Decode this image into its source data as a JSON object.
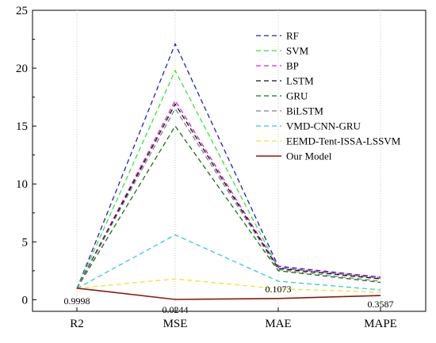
{
  "chart_data": {
    "type": "line",
    "categories": [
      "R2",
      "MSE",
      "MAE",
      "MAPE"
    ],
    "ylim": [
      -1,
      25
    ],
    "yticks": [
      0,
      5,
      10,
      15,
      20,
      25
    ],
    "grid": "vertical-dotted",
    "legend_position": "top-right",
    "series": [
      {
        "name": "RF",
        "values": [
          0.95,
          22.1,
          2.9,
          1.95
        ],
        "color": "#1f1fbf",
        "dash": "dashed"
      },
      {
        "name": "SVM",
        "values": [
          0.96,
          19.8,
          2.75,
          1.85
        ],
        "color": "#33e633",
        "dash": "dashed"
      },
      {
        "name": "BP",
        "values": [
          0.97,
          17.2,
          2.8,
          1.9
        ],
        "color": "#e01ee0",
        "dash": "dashed"
      },
      {
        "name": "LSTM",
        "values": [
          0.97,
          16.9,
          2.7,
          1.8
        ],
        "color": "#111111",
        "dash": "dashed"
      },
      {
        "name": "GRU",
        "values": [
          0.97,
          15.0,
          2.5,
          1.5
        ],
        "color": "#1a6e1a",
        "dash": "dashed"
      },
      {
        "name": "BiLSTM",
        "values": [
          0.97,
          16.5,
          2.6,
          1.6
        ],
        "color": "#808080",
        "dash": "dashed"
      },
      {
        "name": "VMD-CNN-GRU",
        "values": [
          0.98,
          5.6,
          1.6,
          0.85
        ],
        "color": "#33cccc",
        "dash": "dashed"
      },
      {
        "name": "EEMD-Tent-ISSA-LSSVM",
        "values": [
          0.99,
          1.8,
          0.95,
          0.65
        ],
        "color": "#e6e633",
        "dash": "dashed"
      },
      {
        "name": "Our Model",
        "values": [
          0.9998,
          0.0244,
          0.1073,
          0.3587
        ],
        "color": "#8b1a0a",
        "dash": "solid"
      }
    ],
    "data_labels": [
      "0.9998",
      "0.0244",
      "0.1073",
      "0.3587"
    ]
  }
}
